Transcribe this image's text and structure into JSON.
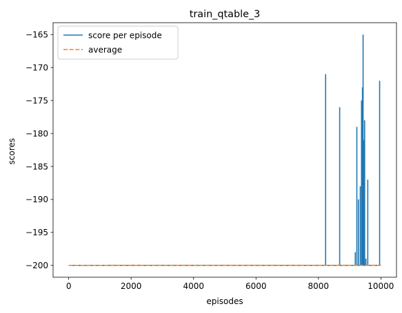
{
  "chart_data": {
    "type": "line",
    "title": "train_qtable_3",
    "xlabel": "episodes",
    "ylabel": "scores",
    "xlim": [
      -500,
      10500
    ],
    "ylim": [
      -201.8,
      -163.2
    ],
    "xticks": [
      0,
      2000,
      4000,
      6000,
      8000,
      10000
    ],
    "xtick_labels": [
      "0",
      "2000",
      "4000",
      "6000",
      "8000",
      "10000"
    ],
    "yticks": [
      -200,
      -195,
      -190,
      -185,
      -180,
      -175,
      -170,
      -165
    ],
    "ytick_labels": [
      "−200",
      "−195",
      "−190",
      "−185",
      "−180",
      "−175",
      "−170",
      "−165"
    ],
    "grid": false,
    "legend_position": "upper left",
    "baseline": -200,
    "series": [
      {
        "name": "score per episode",
        "color": "#1f77b4",
        "style": "solid",
        "x": [
          0,
          9999
        ],
        "y": [
          -200,
          -200
        ],
        "spikes": [
          {
            "x": 8230,
            "y": -171
          },
          {
            "x": 8680,
            "y": -176
          },
          {
            "x": 9180,
            "y": -198
          },
          {
            "x": 9230,
            "y": -179
          },
          {
            "x": 9280,
            "y": -190
          },
          {
            "x": 9340,
            "y": -188
          },
          {
            "x": 9380,
            "y": -175
          },
          {
            "x": 9410,
            "y": -173
          },
          {
            "x": 9430,
            "y": -165
          },
          {
            "x": 9450,
            "y": -181
          },
          {
            "x": 9480,
            "y": -178
          },
          {
            "x": 9520,
            "y": -199
          },
          {
            "x": 9580,
            "y": -187
          },
          {
            "x": 9960,
            "y": -172
          }
        ]
      },
      {
        "name": "average",
        "color": "#ff7f0e",
        "style": "dashed",
        "x": [
          0,
          9999
        ],
        "y": [
          -200,
          -199.99
        ]
      }
    ]
  }
}
